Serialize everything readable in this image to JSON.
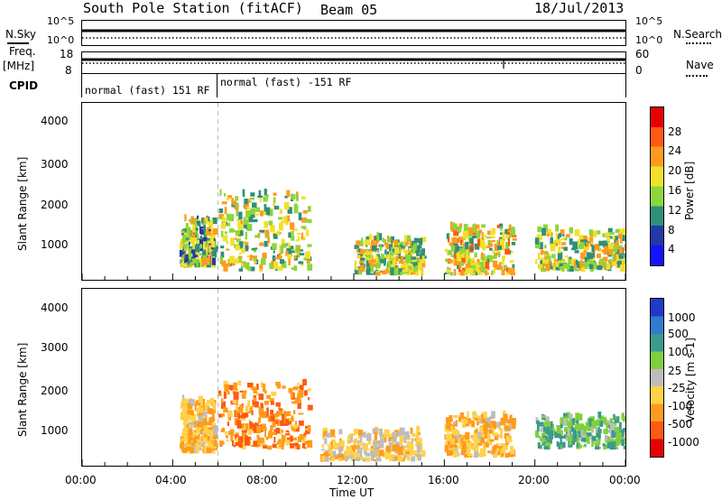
{
  "header": {
    "station": "South Pole Station (fitACF)",
    "beam": "Beam 05",
    "date": "18/Jul/2013"
  },
  "noise_panel": {
    "left_label": "N.Sky",
    "right_label": "N.Search",
    "left_ticks": [
      "10^5",
      "10^0"
    ],
    "right_ticks": [
      "10^5",
      "10^0"
    ]
  },
  "freq_panel": {
    "left_label": "Freq.",
    "left_unit": "[MHz]",
    "right_label": "Nave",
    "left_ticks": [
      "18",
      "8"
    ],
    "right_ticks": [
      "60",
      "0"
    ]
  },
  "cpid_panel": {
    "label": "CPID",
    "segments": [
      "normal (fast) 151 RF",
      "normal (fast) -151 RF"
    ]
  },
  "power_panel": {
    "ylabel": "Slant Range [km]",
    "yticks": [
      "4000",
      "3000",
      "2000",
      "1000"
    ],
    "colorbar_label": "Power [dB]",
    "colorbar_ticks": [
      "28",
      "24",
      "20",
      "16",
      "12",
      "8",
      "4"
    ],
    "colors": [
      "#1414ff",
      "#1f3aa8",
      "#2f8f7a",
      "#8dd63c",
      "#f2e02a",
      "#ff9a1f",
      "#ff5a10",
      "#e60000"
    ]
  },
  "velocity_panel": {
    "ylabel": "Slant Range [km]",
    "yticks": [
      "4000",
      "3000",
      "2000",
      "1000"
    ],
    "colorbar_label": "Velocity [m s-1]",
    "colorbar_ticks": [
      "1000",
      "500",
      "100",
      "25",
      "-25",
      "-100",
      "-500",
      "-1000"
    ],
    "colors": [
      "#2238c8",
      "#2f7bd2",
      "#3c9a8e",
      "#7fcf3f",
      "#bdbdbd",
      "#ffd24a",
      "#ff9b1c",
      "#ff5a12",
      "#e80000"
    ]
  },
  "xaxis": {
    "ticks": [
      "00:00",
      "04:00",
      "08:00",
      "12:00",
      "16:00",
      "20:00",
      "00:00"
    ],
    "label": "Time UT"
  },
  "chart_data": [
    {
      "type": "heatmap",
      "title": "South Pole Station (fitACF) Beam 05 18/Jul/2013",
      "xlabel": "Time UT",
      "ylabel": "Slant Range [km]",
      "colorbar": "Power [dB]",
      "xlim": [
        "00:00",
        "24:00"
      ],
      "ylim": [
        200,
        4600
      ],
      "clim": [
        0,
        32
      ],
      "regions": [
        {
          "t_start": 4.3,
          "t_end": 5.8,
          "range_low": 500,
          "range_high": 1700,
          "power_db": 22
        },
        {
          "t_start": 6.0,
          "t_end": 10.0,
          "range_low": 400,
          "range_high": 2300,
          "power_db": 24
        },
        {
          "t_start": 12.0,
          "t_end": 15.0,
          "range_low": 300,
          "range_high": 1200,
          "power_db": 24
        },
        {
          "t_start": 16.0,
          "t_end": 19.0,
          "range_low": 300,
          "range_high": 1500,
          "power_db": 26
        },
        {
          "t_start": 20.0,
          "t_end": 24.0,
          "range_low": 400,
          "range_high": 1400,
          "power_db": 24
        }
      ]
    },
    {
      "type": "heatmap",
      "title": "South Pole Station (fitACF) Beam 05 18/Jul/2013",
      "xlabel": "Time UT",
      "ylabel": "Slant Range [km]",
      "colorbar": "Velocity [m s-1]",
      "xlim": [
        "00:00",
        "24:00"
      ],
      "ylim": [
        200,
        4600
      ],
      "clim": [
        -1000,
        1000
      ],
      "regions": [
        {
          "t_start": 4.3,
          "t_end": 5.8,
          "range_low": 500,
          "range_high": 1800,
          "velocity": -300
        },
        {
          "t_start": 6.0,
          "t_end": 10.0,
          "range_low": 600,
          "range_high": 2200,
          "velocity": -500
        },
        {
          "t_start": 10.5,
          "t_end": 15.0,
          "range_low": 300,
          "range_high": 1000,
          "velocity": -200
        },
        {
          "t_start": 16.0,
          "t_end": 19.0,
          "range_low": 400,
          "range_high": 1400,
          "velocity": -300
        },
        {
          "t_start": 20.0,
          "t_end": 24.0,
          "range_low": 600,
          "range_high": 1400,
          "velocity": 300
        }
      ]
    }
  ]
}
